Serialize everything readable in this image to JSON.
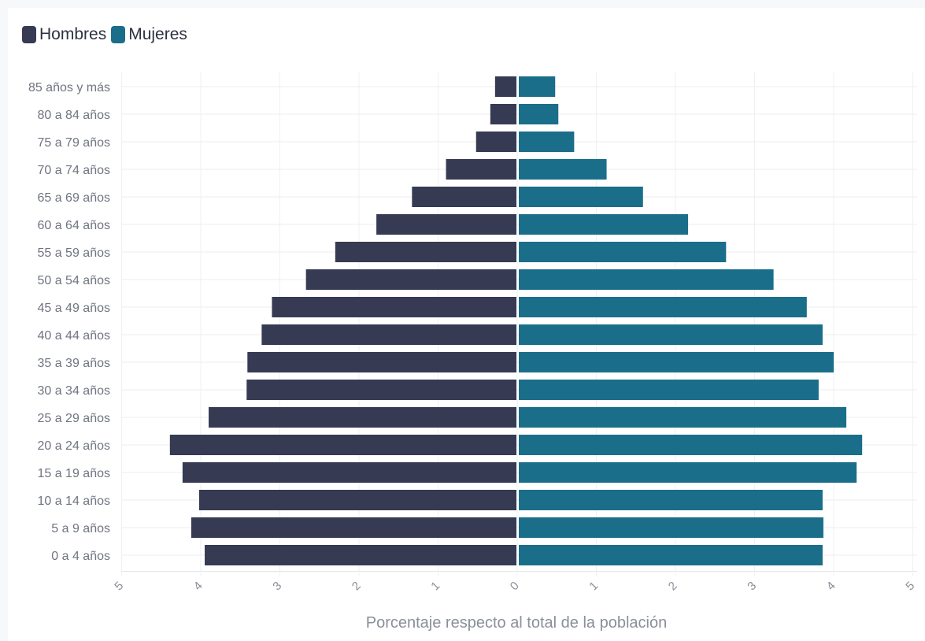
{
  "chart_data": {
    "type": "bar",
    "orientation": "horizontal-population-pyramid",
    "xlabel": "Porcentaje respecto al total de la población",
    "xlim": [
      -5,
      5
    ],
    "x_ticks": [
      "5",
      "4",
      "3",
      "2",
      "1",
      "0",
      "1",
      "2",
      "3",
      "4",
      "5"
    ],
    "grid": true,
    "legend_position": "top-left",
    "categories": [
      "85 años y más",
      "80 a 84 años",
      "75 a 79 años",
      "70 a 74 años",
      "65 a 69 años",
      "60 a 64 años",
      "55 a 59 años",
      "50 a 54 años",
      "45 a 49 años",
      "40 a 44 años",
      "35 a 39 años",
      "30 a 34 años",
      "25 a 29 años",
      "20 a 24 años",
      "15 a 19 años",
      "10 a 14 años",
      "5 a 9 años",
      "0 a 4 años"
    ],
    "series": [
      {
        "name": "Hombres",
        "color": "#363a53",
        "values": [
          0.28,
          0.34,
          0.52,
          0.9,
          1.33,
          1.78,
          2.3,
          2.67,
          3.1,
          3.23,
          3.41,
          3.42,
          3.9,
          4.39,
          4.23,
          4.02,
          4.12,
          3.95
        ]
      },
      {
        "name": "Mujeres",
        "color": "#1a6e8a",
        "values": [
          0.47,
          0.51,
          0.71,
          1.12,
          1.58,
          2.15,
          2.63,
          3.23,
          3.65,
          3.85,
          3.99,
          3.8,
          4.15,
          4.35,
          4.28,
          3.85,
          3.86,
          3.85
        ]
      }
    ]
  }
}
